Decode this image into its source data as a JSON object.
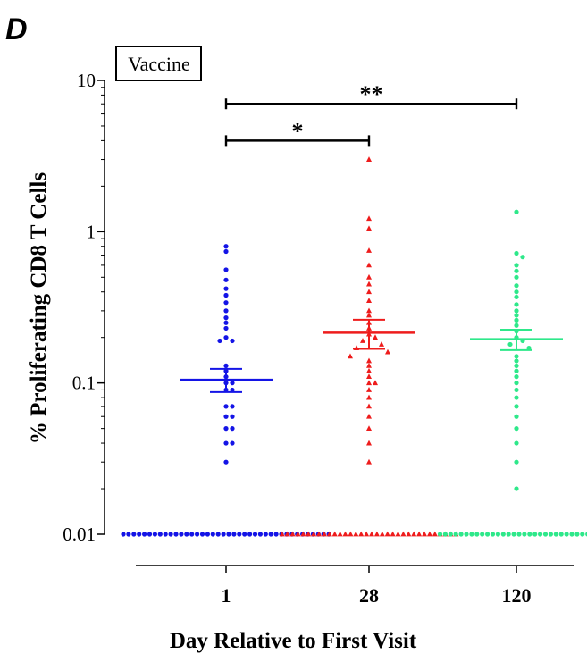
{
  "panel_label": "D",
  "chart_data": {
    "type": "scatter",
    "title": "",
    "legend_box": "Vaccine",
    "xlabel": "Day Relative to First Visit",
    "ylabel": "% Proliferating CD8 T Cells",
    "yscale": "log",
    "ylim": [
      0.01,
      10
    ],
    "ytick_labels": [
      "0.01",
      "0.1",
      "1",
      "10"
    ],
    "categories": [
      "1",
      "28",
      "120"
    ],
    "series": [
      {
        "category": "1",
        "color": "#1414e6",
        "marker": "circle",
        "summary": {
          "mean": 0.105,
          "sem_low": 0.087,
          "sem_high": 0.124
        },
        "values": [
          0.8,
          0.74,
          0.56,
          0.48,
          0.42,
          0.38,
          0.34,
          0.3,
          0.27,
          0.25,
          0.23,
          0.2,
          0.19,
          0.19,
          0.13,
          0.12,
          0.11,
          0.1,
          0.1,
          0.09,
          0.09,
          0.07,
          0.07,
          0.06,
          0.06,
          0.05,
          0.05,
          0.04,
          0.04,
          0.03
        ],
        "zero_count": 40
      },
      {
        "category": "28",
        "color": "#ee1c1c",
        "marker": "triangle",
        "summary": {
          "mean": 0.215,
          "sem_low": 0.168,
          "sem_high": 0.262
        },
        "values": [
          3.0,
          1.22,
          1.05,
          0.75,
          0.6,
          0.5,
          0.45,
          0.4,
          0.35,
          0.3,
          0.28,
          0.25,
          0.23,
          0.21,
          0.2,
          0.19,
          0.18,
          0.17,
          0.16,
          0.15,
          0.14,
          0.13,
          0.12,
          0.11,
          0.1,
          0.1,
          0.09,
          0.08,
          0.07,
          0.06,
          0.05,
          0.04,
          0.03
        ],
        "zero_count": 34
      },
      {
        "category": "120",
        "color": "#2ee88a",
        "marker": "circle",
        "summary": {
          "mean": 0.195,
          "sem_low": 0.165,
          "sem_high": 0.225
        },
        "values": [
          1.35,
          0.72,
          0.68,
          0.6,
          0.55,
          0.5,
          0.44,
          0.4,
          0.37,
          0.33,
          0.3,
          0.28,
          0.26,
          0.24,
          0.22,
          0.2,
          0.19,
          0.18,
          0.17,
          0.15,
          0.14,
          0.13,
          0.12,
          0.11,
          0.1,
          0.09,
          0.08,
          0.07,
          0.06,
          0.05,
          0.04,
          0.03,
          0.02
        ],
        "zero_count": 30
      }
    ],
    "annotations": [
      {
        "text": "**",
        "from": "1",
        "to": "120",
        "y": 7
      },
      {
        "text": "*",
        "from": "1",
        "to": "28",
        "y": 4
      }
    ]
  }
}
